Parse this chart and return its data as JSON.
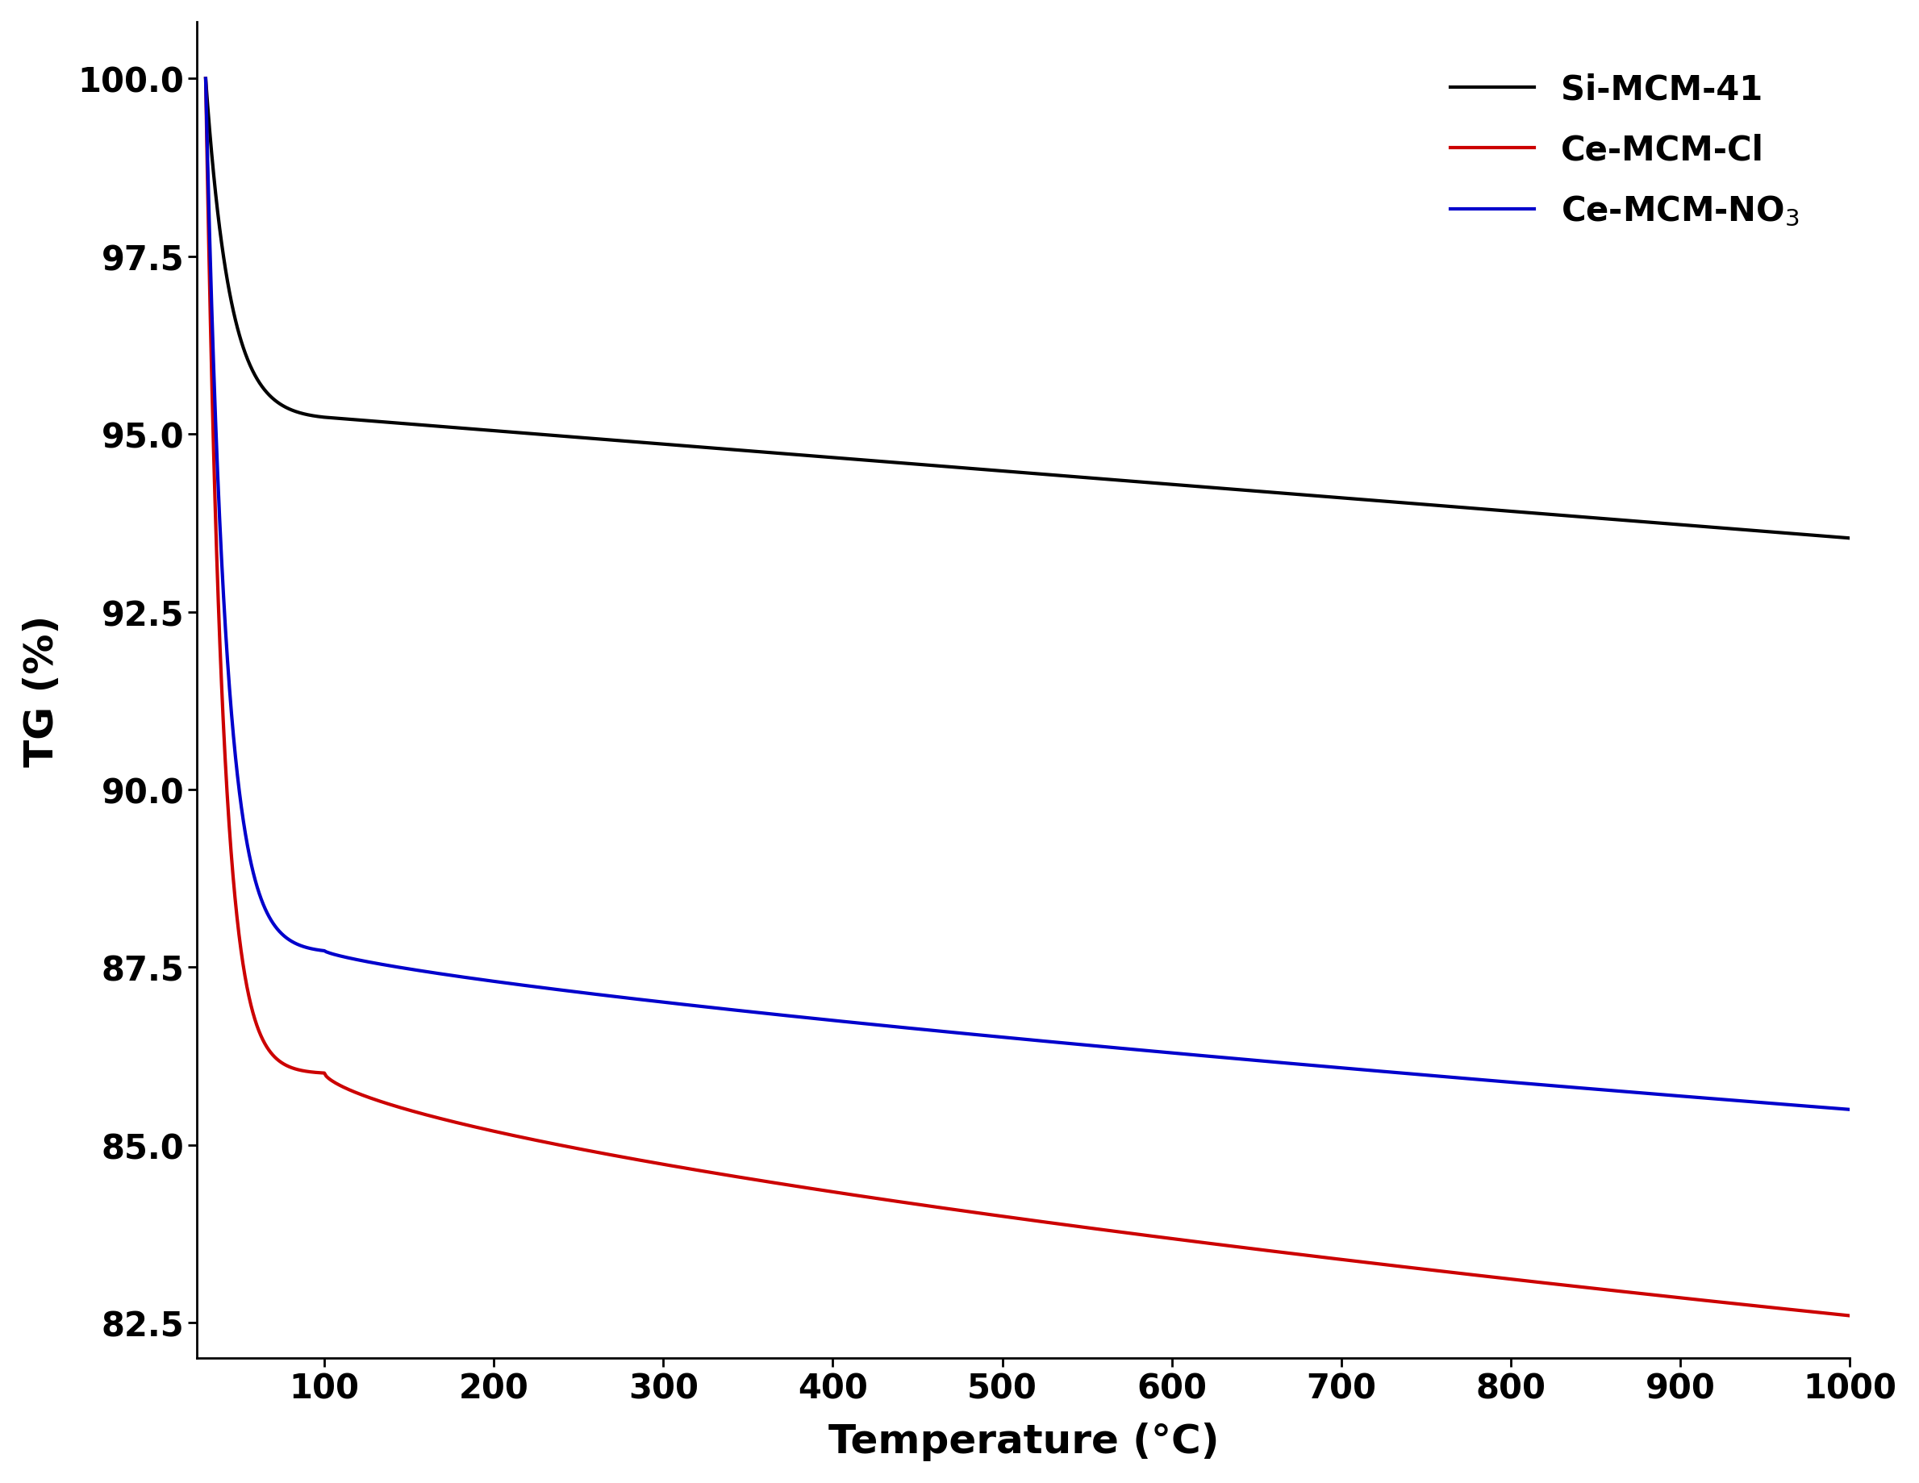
{
  "title": "",
  "xlabel": "Temperature (°C)",
  "ylabel": "TG (%)",
  "xlim": [
    25,
    1000
  ],
  "ylim": [
    82.0,
    100.8
  ],
  "yticks": [
    82.5,
    85.0,
    87.5,
    90.0,
    92.5,
    95.0,
    97.5,
    100.0
  ],
  "xticks": [
    100,
    200,
    300,
    400,
    500,
    600,
    700,
    800,
    900,
    1000
  ],
  "legend_labels": [
    "Si-MCM-41",
    "Ce-MCM-Cl",
    "Ce-MCM-NO$_3$"
  ],
  "colors": [
    "#000000",
    "#cc0000",
    "#0000cc"
  ],
  "background_color": "#ffffff",
  "linewidth": 3.0,
  "xlabel_fontsize": 36,
  "ylabel_fontsize": 36,
  "tick_fontsize": 30,
  "legend_fontsize": 30
}
